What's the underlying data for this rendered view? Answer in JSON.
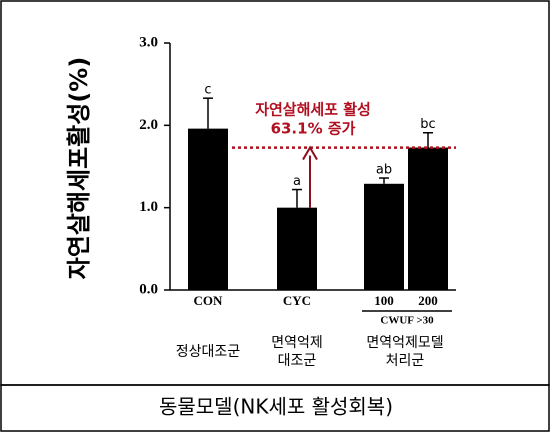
{
  "chart_data": {
    "type": "bar",
    "y_label": "자연살해세포활성(%)",
    "categories": [
      "CON",
      "CYC",
      "100",
      "200"
    ],
    "values": [
      1.96,
      1.0,
      1.29,
      1.73
    ],
    "errors": [
      0.37,
      0.22,
      0.07,
      0.18
    ],
    "sig_labels": [
      "c",
      "a",
      "ab",
      "bc"
    ],
    "color": "#000000",
    "ylim": [
      0,
      3
    ],
    "yticks": [
      {
        "value": 0,
        "label": "0.0"
      },
      {
        "value": 1,
        "label": "1.0"
      },
      {
        "value": 2,
        "label": "2.0"
      },
      {
        "value": 3,
        "label": "3.0"
      }
    ],
    "annotation": [
      "자연살해세포 활성",
      "63.1% 증가"
    ],
    "subgroup_label": "CWUF >30",
    "group_labels": [
      [
        "정상대조군"
      ],
      [
        "면역억제",
        "대조군"
      ],
      [
        "면역억제모델",
        "처리군"
      ]
    ]
  },
  "caption": "동물모델(NK세포  활성회복)"
}
